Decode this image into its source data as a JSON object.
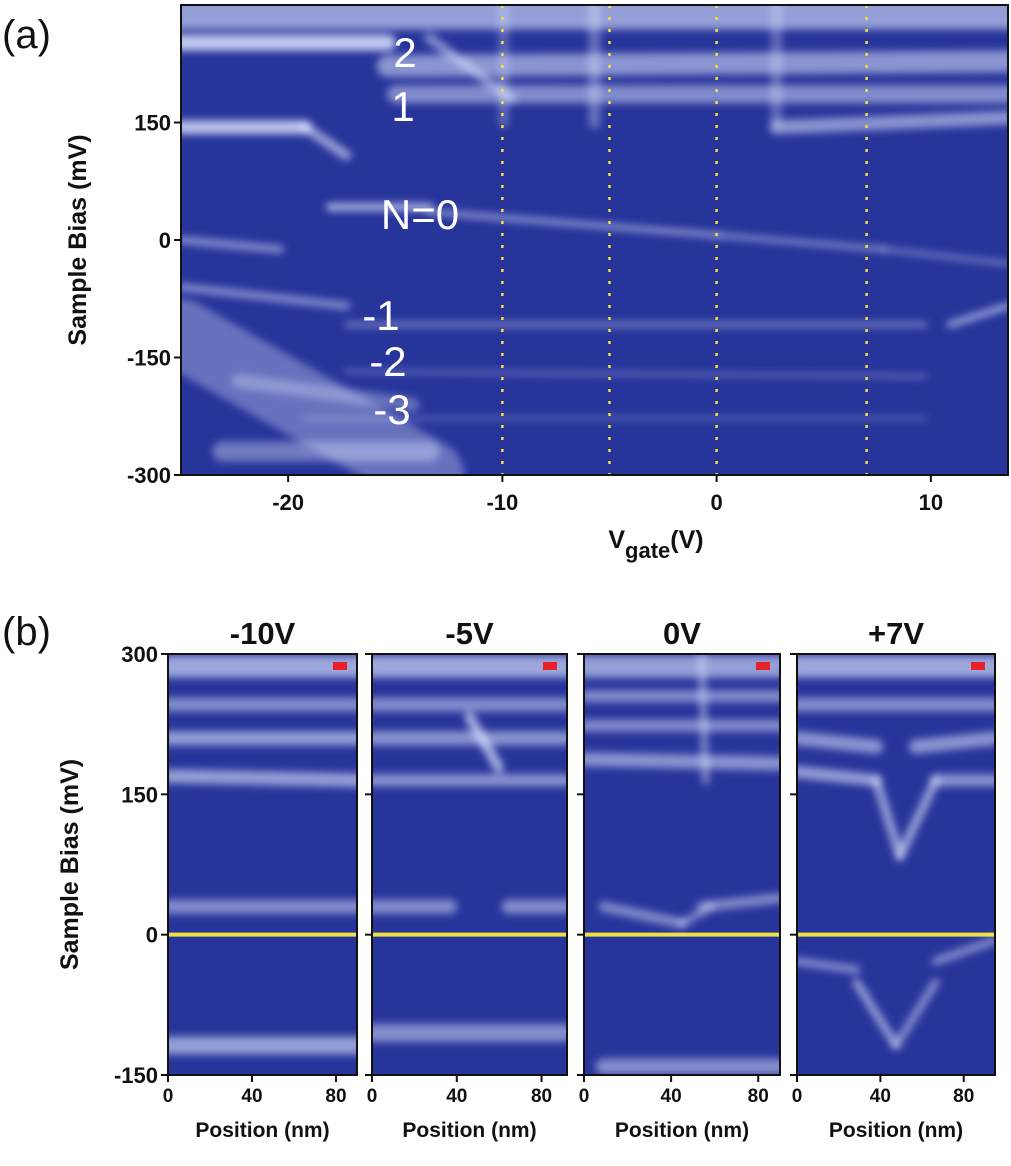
{
  "panel_labels": [
    "(a)",
    "(b)"
  ],
  "chart_data": [
    {
      "type": "heatmap",
      "x_label": {
        "main": "V",
        "sub": "gate",
        "unit": "(V)"
      },
      "y_label": "Sample Bias (mV)",
      "xlim": [
        -25,
        13.6
      ],
      "ylim": [
        -300,
        300
      ],
      "xticks": [
        -20,
        -10,
        0,
        10
      ],
      "yticks": [
        -300,
        -150,
        0,
        150
      ],
      "vlines": [
        -10,
        -5,
        0,
        7
      ],
      "line_color": "#f0e040",
      "annotations": [
        "2",
        "1",
        "N=0",
        "-1",
        "-2",
        "-3"
      ]
    },
    {
      "type": "heatmap",
      "title": "-10V",
      "x_label": "Position (nm)",
      "y_label": "Sample Bias (mV)",
      "xlim": [
        0,
        90
      ],
      "ylim": [
        -150,
        300
      ],
      "xticks": [
        0,
        40,
        80
      ],
      "yticks": [
        -150,
        0,
        150,
        300
      ],
      "ytick_labels": true,
      "hline": 0,
      "line_color": "#f0e040"
    },
    {
      "type": "heatmap",
      "title": "-5V",
      "x_label": "Position (nm)",
      "xlim": [
        0,
        92
      ],
      "ylim": [
        -150,
        300
      ],
      "xticks": [
        0,
        40,
        80
      ],
      "yticks": [
        -150,
        0,
        150,
        300
      ],
      "ytick_labels": false,
      "hline": 0,
      "line_color": "#f0e040"
    },
    {
      "type": "heatmap",
      "title": "0V",
      "x_label": "Position (nm)",
      "xlim": [
        0,
        90
      ],
      "ylim": [
        -150,
        300
      ],
      "xticks": [
        0,
        40,
        80
      ],
      "yticks": [
        -150,
        0,
        150,
        300
      ],
      "ytick_labels": false,
      "hline": 0,
      "line_color": "#f0e040"
    },
    {
      "type": "heatmap",
      "title": "+7V",
      "x_label": "Position (nm)",
      "xlim": [
        0,
        95
      ],
      "ylim": [
        -150,
        300
      ],
      "xticks": [
        0,
        40,
        80
      ],
      "yticks": [
        -150,
        0,
        150,
        300
      ],
      "ytick_labels": false,
      "hline": 0,
      "line_color": "#f0e040"
    }
  ]
}
